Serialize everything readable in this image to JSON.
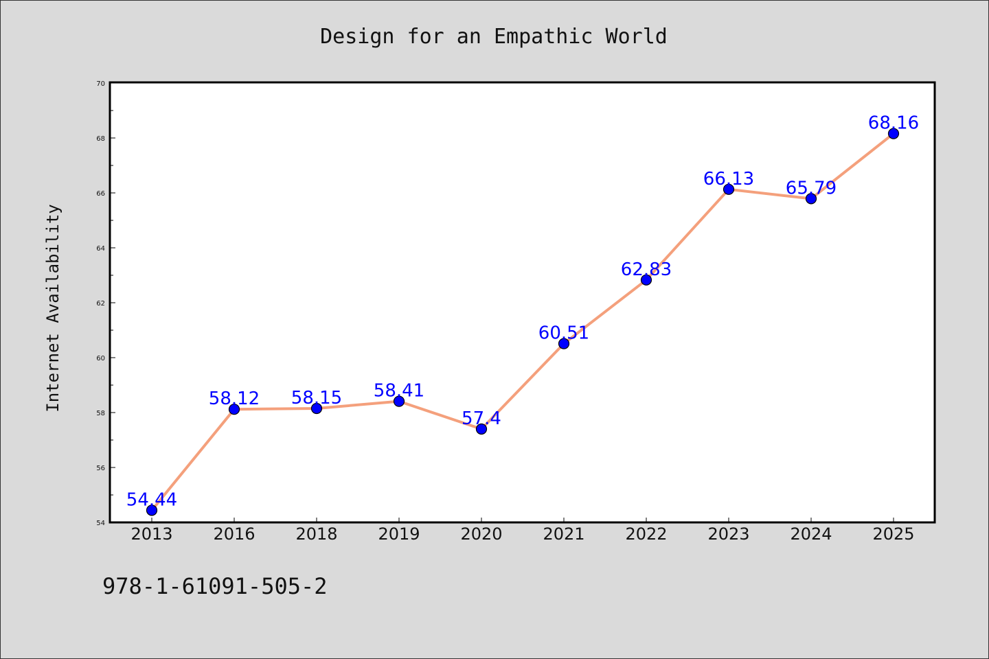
{
  "chart_data": {
    "type": "line",
    "title": "Design for an Empathic World",
    "xlabel": "",
    "ylabel": "Internet Availability",
    "categories": [
      "2013",
      "2016",
      "2018",
      "2019",
      "2020",
      "2021",
      "2022",
      "2023",
      "2024",
      "2025"
    ],
    "series": [
      {
        "values": [
          54.44,
          58.12,
          58.15,
          58.41,
          57.4,
          60.51,
          62.83,
          66.13,
          65.79,
          68.16
        ]
      }
    ],
    "data_labels": [
      "54.44",
      "58.12",
      "58.15",
      "58.41",
      "57.4",
      "60.51",
      "62.83",
      "66.13",
      "65.79",
      "68.16"
    ],
    "ylim": [
      54,
      70
    ],
    "yticks": [
      "54",
      "56",
      "58",
      "60",
      "62",
      "64",
      "66",
      "68",
      "70"
    ],
    "grid": false,
    "legend": "none",
    "colors": {
      "line": "#f4a07c",
      "marker": "#0000ff",
      "label": "#0000ff",
      "background": "#dadada",
      "plot_background": "#ffffff"
    }
  },
  "footer_text": "978-1-61091-505-2"
}
